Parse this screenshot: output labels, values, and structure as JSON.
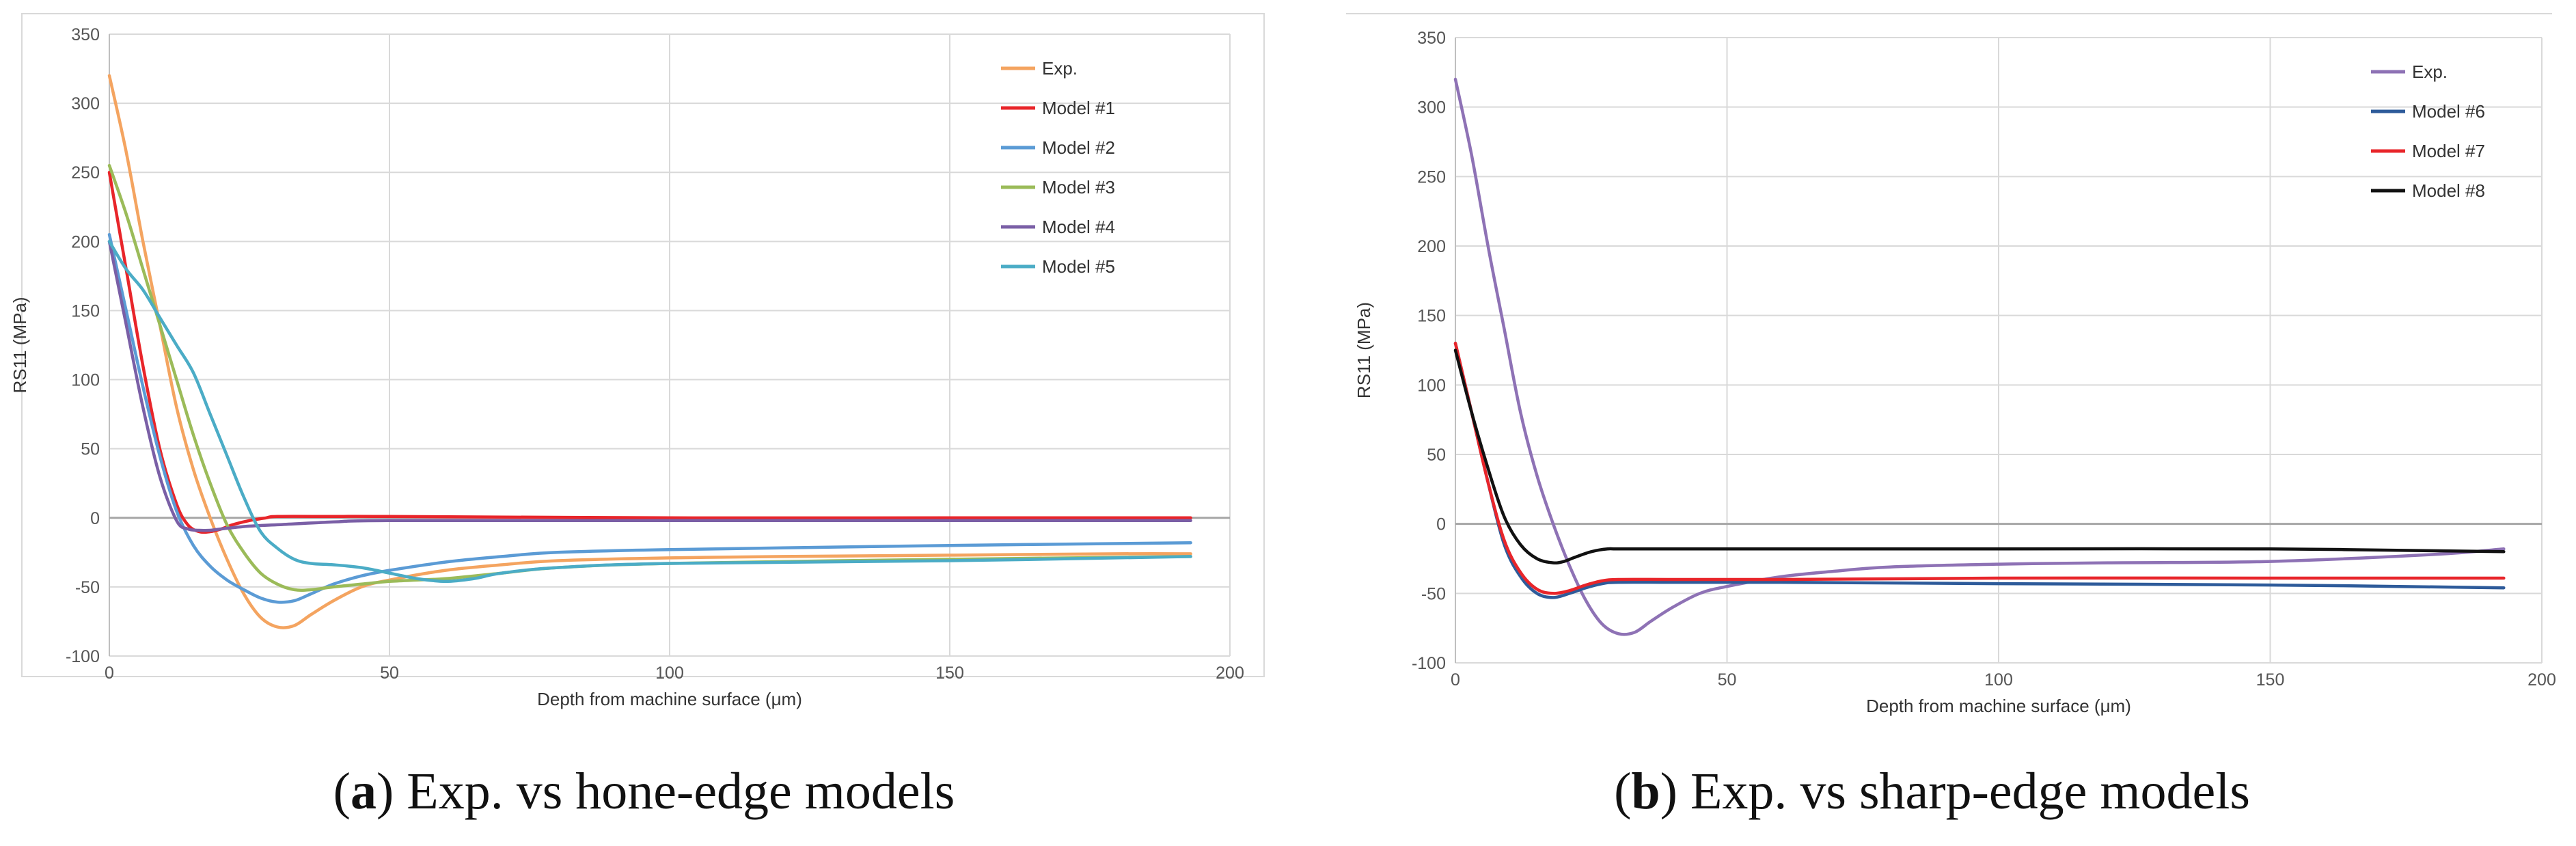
{
  "chart_data": [
    {
      "type": "line",
      "panel_label": "a",
      "caption": "Exp. vs hone-edge models",
      "xlabel": "Depth from machine surface (μm)",
      "ylabel": "RS11 (MPa)",
      "xlim": [
        0,
        200
      ],
      "ylim": [
        -100,
        350
      ],
      "xticks": [
        0,
        50,
        100,
        150,
        200
      ],
      "yticks": [
        -100,
        -50,
        0,
        50,
        100,
        150,
        200,
        250,
        300,
        350
      ],
      "grid": true,
      "legend_position": "top-right",
      "series": [
        {
          "name": "Exp.",
          "color": "#f4a460",
          "x": [
            0,
            3,
            6,
            9,
            12,
            15,
            18,
            21,
            24,
            27,
            30,
            33,
            36,
            40,
            45,
            50,
            60,
            70,
            80,
            100,
            120,
            150,
            180,
            193
          ],
          "y": [
            320,
            265,
            200,
            140,
            80,
            35,
            0,
            -30,
            -55,
            -72,
            -79,
            -78,
            -70,
            -60,
            -50,
            -45,
            -38,
            -34,
            -31,
            -29,
            -28,
            -27,
            -26,
            -26
          ]
        },
        {
          "name": "Model #1",
          "color": "#e8252a",
          "x": [
            0,
            3,
            6,
            9,
            12,
            14,
            16,
            18,
            20,
            22,
            25,
            28,
            30,
            40,
            50,
            100,
            150,
            193
          ],
          "y": [
            250,
            180,
            110,
            50,
            10,
            -5,
            -10,
            -10,
            -8,
            -5,
            -2,
            0,
            1,
            1,
            1,
            0,
            0,
            0
          ]
        },
        {
          "name": "Model #2",
          "color": "#5b9bd5",
          "x": [
            0,
            3,
            6,
            9,
            12,
            15,
            18,
            21,
            24,
            27,
            30,
            33,
            36,
            40,
            45,
            50,
            60,
            70,
            80,
            100,
            150,
            193
          ],
          "y": [
            205,
            150,
            95,
            45,
            5,
            -20,
            -35,
            -45,
            -52,
            -58,
            -61,
            -60,
            -55,
            -48,
            -42,
            -38,
            -32,
            -28,
            -25,
            -23,
            -20,
            -18
          ]
        },
        {
          "name": "Model #3",
          "color": "#9bbb59",
          "x": [
            0,
            3,
            6,
            9,
            12,
            15,
            18,
            21,
            24,
            27,
            30,
            33,
            36,
            40,
            45,
            50,
            55,
            60,
            70,
            80,
            100,
            150,
            193
          ],
          "y": [
            255,
            220,
            180,
            140,
            100,
            60,
            25,
            -5,
            -25,
            -40,
            -48,
            -52,
            -52,
            -50,
            -48,
            -46,
            -45,
            -44,
            -40,
            -36,
            -33,
            -30,
            -28
          ]
        },
        {
          "name": "Model #4",
          "color": "#7a5fa6",
          "x": [
            0,
            3,
            6,
            9,
            12,
            14,
            16,
            18,
            20,
            25,
            30,
            40,
            50,
            100,
            150,
            193
          ],
          "y": [
            200,
            140,
            80,
            30,
            -2,
            -8,
            -9,
            -9,
            -8,
            -6,
            -5,
            -3,
            -2,
            -2,
            -2,
            -2
          ]
        },
        {
          "name": "Model #5",
          "color": "#4bacc6",
          "x": [
            0,
            3,
            6,
            9,
            12,
            15,
            18,
            21,
            24,
            27,
            30,
            33,
            36,
            40,
            45,
            50,
            55,
            60,
            65,
            70,
            80,
            100,
            150,
            193
          ],
          "y": [
            200,
            180,
            165,
            145,
            125,
            105,
            75,
            45,
            15,
            -10,
            -22,
            -30,
            -33,
            -34,
            -36,
            -40,
            -44,
            -46,
            -44,
            -40,
            -36,
            -33,
            -31,
            -28
          ]
        }
      ]
    },
    {
      "type": "line",
      "panel_label": "b",
      "caption": "Exp. vs sharp-edge models",
      "xlabel": "Depth from machine surface (μm)",
      "ylabel": "RS11 (MPa)",
      "xlim": [
        0,
        200
      ],
      "ylim": [
        -100,
        350
      ],
      "xticks": [
        0,
        50,
        100,
        150,
        200
      ],
      "yticks": [
        -100,
        -50,
        0,
        50,
        100,
        150,
        200,
        250,
        300,
        350
      ],
      "grid": true,
      "legend_position": "top-right",
      "series": [
        {
          "name": "Exp.",
          "color": "#8e72b5",
          "x": [
            0,
            3,
            6,
            9,
            12,
            15,
            18,
            21,
            24,
            27,
            30,
            33,
            36,
            40,
            45,
            50,
            60,
            70,
            80,
            100,
            120,
            150,
            180,
            193
          ],
          "y": [
            320,
            265,
            200,
            140,
            80,
            35,
            0,
            -30,
            -55,
            -72,
            -79,
            -78,
            -70,
            -60,
            -50,
            -45,
            -38,
            -34,
            -31,
            -29,
            -28,
            -27,
            -22,
            -18
          ]
        },
        {
          "name": "Model #6",
          "color": "#2e5b9a",
          "x": [
            0,
            3,
            6,
            9,
            12,
            15,
            18,
            21,
            24,
            27,
            30,
            40,
            60,
            100,
            150,
            193
          ],
          "y": [
            130,
            80,
            30,
            -15,
            -38,
            -50,
            -53,
            -50,
            -46,
            -43,
            -42,
            -42,
            -42,
            -43,
            -44,
            -46
          ]
        },
        {
          "name": "Model #7",
          "color": "#e8252a",
          "x": [
            0,
            3,
            6,
            9,
            12,
            15,
            18,
            21,
            24,
            27,
            30,
            40,
            60,
            100,
            150,
            193
          ],
          "y": [
            130,
            80,
            30,
            -12,
            -35,
            -47,
            -50,
            -48,
            -44,
            -41,
            -40,
            -40,
            -40,
            -39,
            -39,
            -39
          ]
        },
        {
          "name": "Model #8",
          "color": "#111111",
          "x": [
            0,
            3,
            6,
            9,
            12,
            15,
            18,
            20,
            22,
            25,
            28,
            30,
            40,
            60,
            100,
            150,
            193
          ],
          "y": [
            125,
            80,
            40,
            5,
            -15,
            -25,
            -28,
            -27,
            -24,
            -20,
            -18,
            -18,
            -18,
            -18,
            -18,
            -18,
            -20
          ]
        }
      ]
    }
  ]
}
